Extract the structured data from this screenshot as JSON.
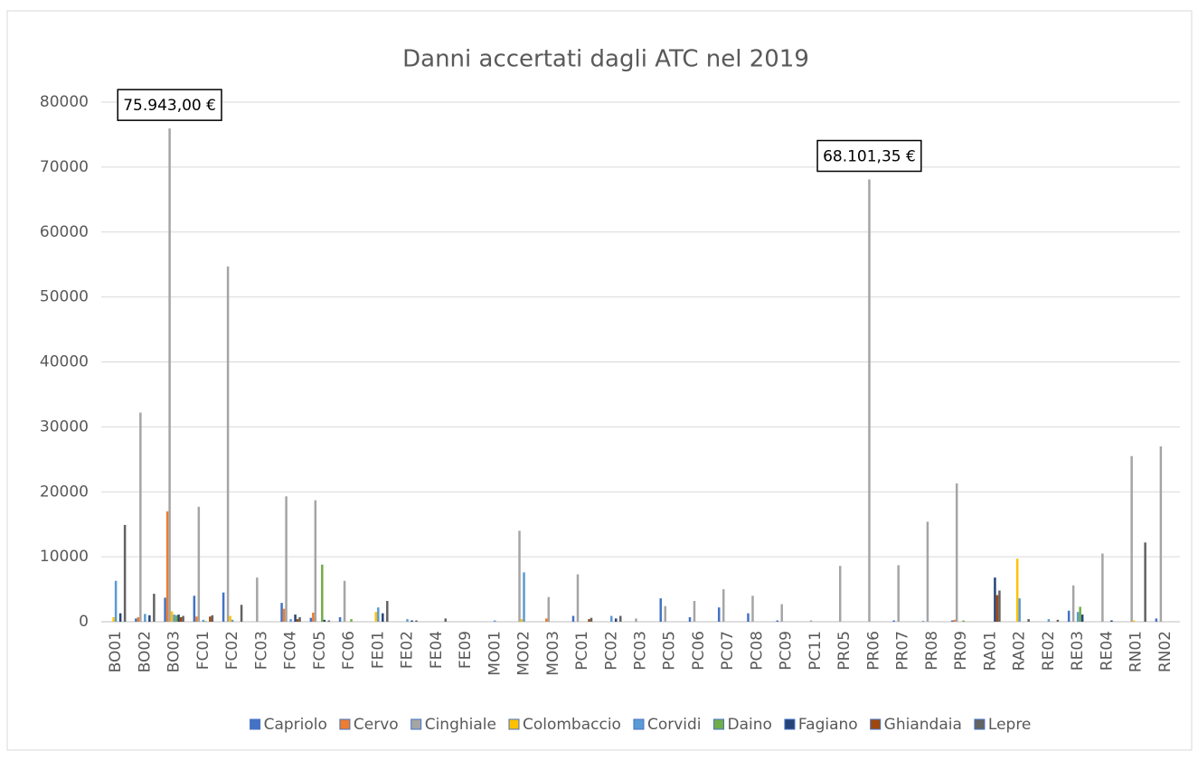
{
  "chart_data": {
    "type": "bar",
    "title": "Danni accertati dagli ATC nel 2019",
    "categories": [
      "BO01",
      "BO02",
      "BO03",
      "FC01",
      "FC02",
      "FC03",
      "FC04",
      "FC05",
      "FC06",
      "FE01",
      "FE02",
      "FE04",
      "FE09",
      "MO01",
      "MO02",
      "MO03",
      "PC01",
      "PC02",
      "PC03",
      "PC05",
      "PC06",
      "PC07",
      "PC08",
      "PC09",
      "PC11",
      "PR05",
      "PR06",
      "PR07",
      "PR08",
      "PR09",
      "RA01",
      "RA02",
      "RE02",
      "RE03",
      "RE04",
      "RN01",
      "RN02"
    ],
    "series": [
      {
        "name": "Capriolo",
        "color": "#4472c4",
        "values": [
          0,
          500,
          3700,
          4000,
          4500,
          0,
          2900,
          600,
          700,
          0,
          0,
          0,
          0,
          0,
          0,
          0,
          900,
          0,
          0,
          3600,
          700,
          2200,
          1300,
          200,
          0,
          0,
          0,
          200,
          100,
          200,
          0,
          0,
          0,
          1700,
          0,
          0,
          500
        ]
      },
      {
        "name": "Cervo",
        "color": "#ed7d31",
        "values": [
          0,
          700,
          17000,
          800,
          0,
          0,
          2000,
          1400,
          0,
          0,
          0,
          0,
          0,
          0,
          0,
          500,
          0,
          0,
          0,
          0,
          0,
          0,
          0,
          0,
          0,
          0,
          0,
          0,
          0,
          300,
          0,
          0,
          0,
          0,
          0,
          0,
          0
        ]
      },
      {
        "name": "Cinghiale",
        "color": "#a5a5a5",
        "values": [
          0,
          32200,
          75943,
          17700,
          54700,
          6800,
          19300,
          18700,
          6300,
          0,
          0,
          0,
          0,
          0,
          14000,
          3800,
          7300,
          0,
          500,
          2400,
          3200,
          5000,
          4000,
          2700,
          200,
          8600,
          68101.35,
          8700,
          15400,
          21300,
          0,
          0,
          0,
          5600,
          10500,
          25500,
          27000
        ],
        "value_labels": [
          null,
          null,
          "75.943,00 €",
          null,
          null,
          null,
          null,
          null,
          null,
          null,
          null,
          null,
          null,
          null,
          null,
          null,
          null,
          null,
          null,
          null,
          null,
          null,
          null,
          null,
          null,
          null,
          "68.101,35 €",
          null,
          null,
          null,
          null,
          null,
          null,
          null,
          null,
          null,
          null
        ]
      },
      {
        "name": "Colombaccio",
        "color": "#ffc000",
        "values": [
          700,
          0,
          1600,
          0,
          900,
          0,
          0,
          0,
          0,
          1500,
          0,
          0,
          0,
          0,
          400,
          0,
          0,
          0,
          0,
          0,
          0,
          0,
          0,
          0,
          0,
          0,
          0,
          0,
          0,
          0,
          0,
          9700,
          0,
          0,
          0,
          200,
          0
        ]
      },
      {
        "name": "Corvidi",
        "color": "#5b9bd5",
        "values": [
          6300,
          1200,
          1100,
          300,
          300,
          0,
          400,
          0,
          0,
          2200,
          400,
          0,
          0,
          200,
          7600,
          0,
          0,
          900,
          0,
          0,
          0,
          0,
          0,
          0,
          0,
          0,
          0,
          0,
          0,
          0,
          0,
          3600,
          400,
          1500,
          0,
          0,
          0
        ]
      },
      {
        "name": "Daino",
        "color": "#70ad47",
        "values": [
          0,
          0,
          1000,
          100,
          0,
          0,
          0,
          8800,
          400,
          0,
          0,
          0,
          0,
          0,
          0,
          0,
          0,
          0,
          0,
          0,
          0,
          0,
          0,
          0,
          0,
          0,
          0,
          0,
          0,
          200,
          0,
          0,
          0,
          2300,
          0,
          0,
          0
        ]
      },
      {
        "name": "Fagiano",
        "color": "#264478",
        "values": [
          1300,
          1000,
          1100,
          0,
          0,
          0,
          1100,
          300,
          0,
          1300,
          200,
          0,
          0,
          0,
          0,
          0,
          0,
          500,
          0,
          0,
          0,
          0,
          0,
          0,
          0,
          0,
          0,
          0,
          0,
          0,
          6800,
          0,
          0,
          1100,
          200,
          0,
          0
        ]
      },
      {
        "name": "Ghiandaia",
        "color": "#9e480e",
        "values": [
          0,
          0,
          700,
          800,
          0,
          0,
          400,
          0,
          0,
          0,
          0,
          0,
          0,
          0,
          0,
          0,
          400,
          0,
          0,
          0,
          0,
          0,
          0,
          0,
          0,
          0,
          0,
          0,
          0,
          0,
          4100,
          0,
          0,
          0,
          0,
          0,
          0
        ]
      },
      {
        "name": "Lepre",
        "color": "#636363",
        "values": [
          14900,
          4300,
          900,
          1000,
          2600,
          0,
          700,
          200,
          0,
          3200,
          200,
          500,
          0,
          0,
          0,
          0,
          600,
          900,
          0,
          0,
          0,
          0,
          0,
          0,
          0,
          0,
          0,
          0,
          0,
          0,
          4800,
          400,
          300,
          0,
          0,
          12200,
          0
        ]
      }
    ],
    "ylim": [
      0,
      80000
    ],
    "yticks": [
      0,
      10000,
      20000,
      30000,
      40000,
      50000,
      60000,
      70000,
      80000
    ],
    "grid": true
  }
}
